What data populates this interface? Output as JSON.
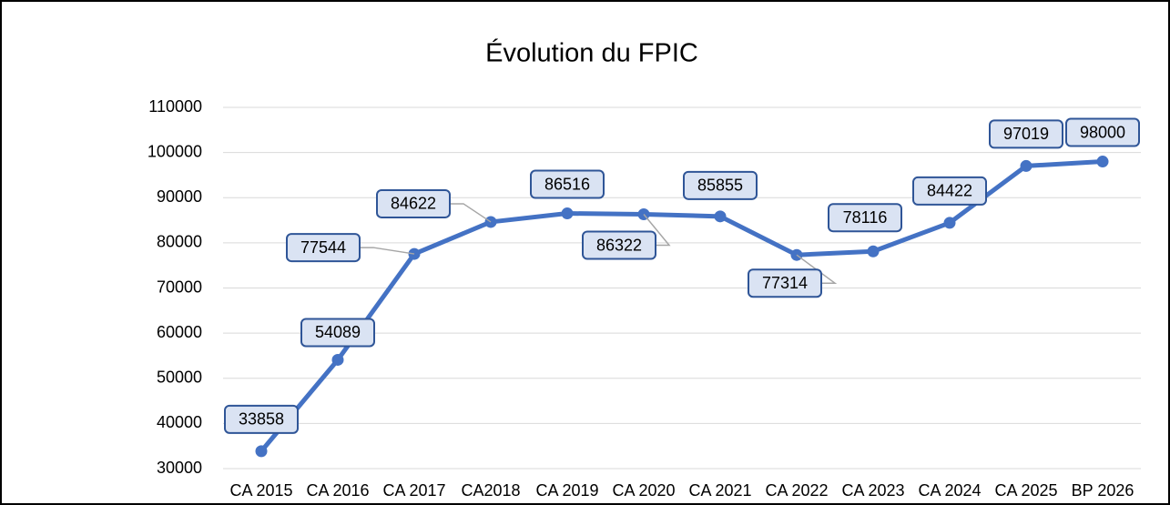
{
  "chart_data": {
    "type": "line",
    "title": "Évolution du FPIC",
    "categories": [
      "CA 2015",
      "CA 2016",
      "CA 2017",
      "CA2018",
      "CA 2019",
      "CA 2020",
      "CA 2021",
      "CA 2022",
      "CA 2023",
      "CA 2024",
      "CA 2025",
      "BP 2026"
    ],
    "series": [
      {
        "name": "FPIC",
        "color": "#4472c4",
        "values": [
          33858,
          54089,
          77544,
          84622,
          86516,
          86322,
          85855,
          77314,
          78116,
          84422,
          97019,
          98000
        ]
      }
    ],
    "ylim": [
      30000,
      110000
    ],
    "yticks": [
      30000,
      40000,
      50000,
      60000,
      70000,
      80000,
      90000,
      100000,
      110000
    ],
    "grid": true
  }
}
